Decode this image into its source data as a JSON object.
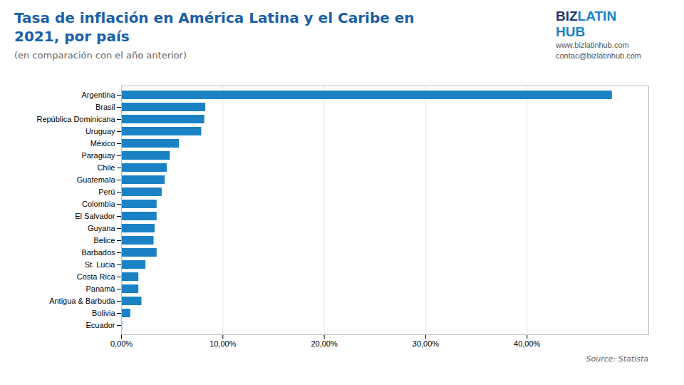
{
  "chart_data": {
    "type": "bar",
    "orientation": "horizontal",
    "title": "Tasa de inflación en América Latina y el Caribe en\n2021, por país",
    "subtitle": "(en comparación con el año anterior)",
    "annotations": [
      "BIZ",
      "LATIN",
      "HUB",
      "www.bizlatinhub.com",
      "contac@bizlatinhub.com"
    ],
    "source": "Source: Statista",
    "categories": [
      "Argentina",
      "Brasil",
      "República Dominicana",
      "Uruguay",
      "México",
      "Paraguay",
      "Chile",
      "Guatemala",
      "Perú",
      "Colombia",
      "El Salvador",
      "Guyana",
      "Belice",
      "Barbados",
      "St. Lucia",
      "Costa Rica",
      "Panamá",
      "Antigua & Barbuda",
      "Bolivia",
      "Ecuador"
    ],
    "values": [
      48.4,
      8.3,
      8.2,
      7.9,
      5.7,
      4.8,
      4.5,
      4.3,
      4.0,
      3.5,
      3.5,
      3.3,
      3.2,
      3.5,
      2.4,
      1.7,
      1.7,
      2.0,
      0.9,
      0.1
    ],
    "color": "#1a82c4",
    "xlim": [
      0,
      52
    ],
    "xticks": [
      {
        "value": 0,
        "label": "0,00%"
      },
      {
        "value": 10,
        "label": "10,00%"
      },
      {
        "value": 20,
        "label": "20,00%"
      },
      {
        "value": 30,
        "label": "30,00%"
      },
      {
        "value": 40,
        "label": "40,00%"
      }
    ],
    "grid": true
  }
}
